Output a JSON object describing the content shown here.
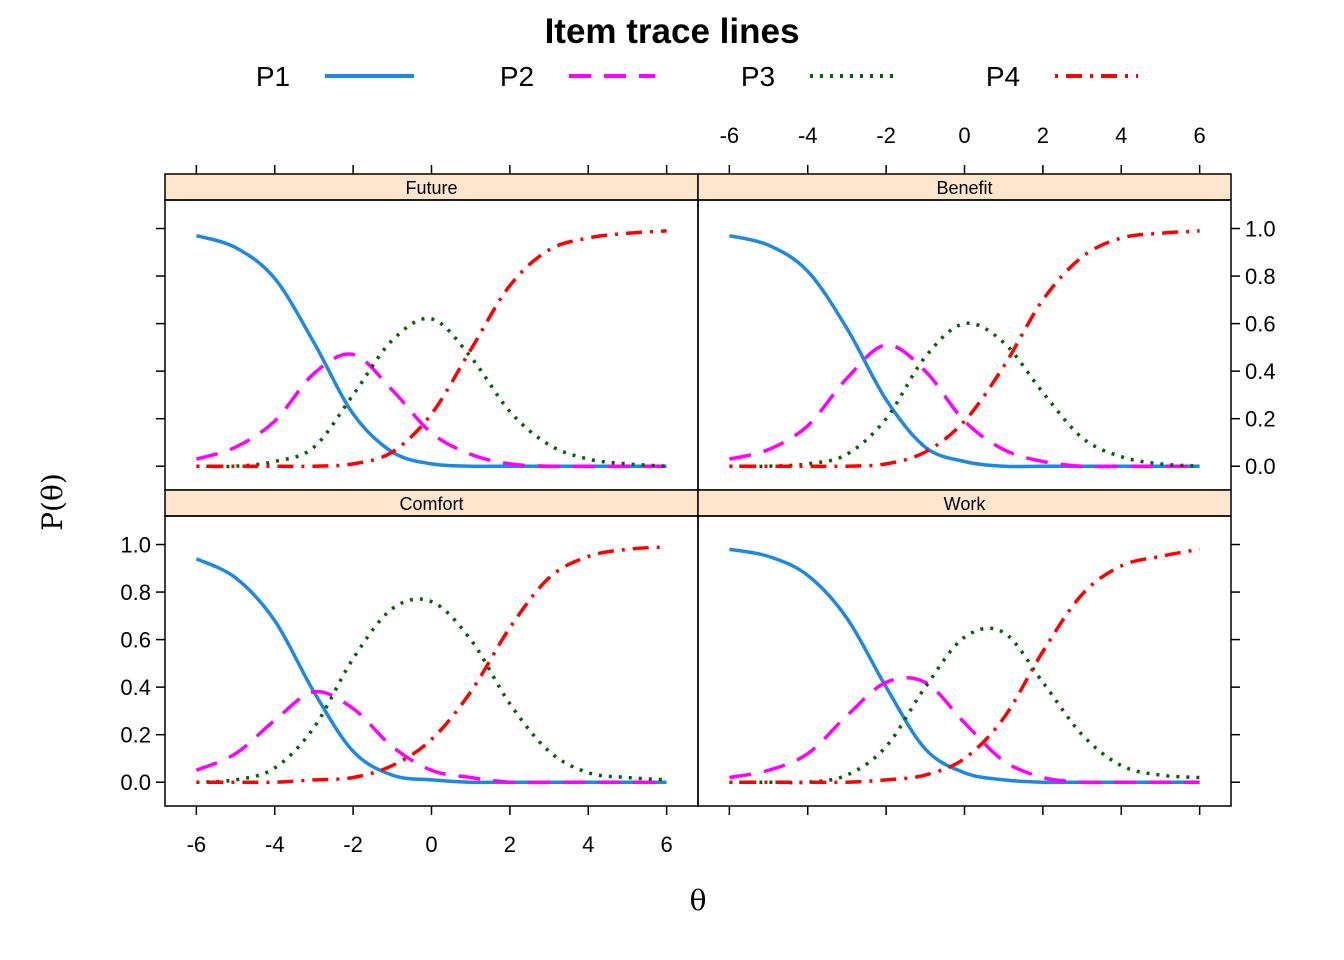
{
  "chart_data": {
    "type": "line",
    "title": "Item trace lines",
    "xlabel": "θ",
    "ylabel": "P(θ)",
    "xlim": [
      -6.8,
      6.8
    ],
    "ylim": [
      -0.1,
      1.12
    ],
    "x_ticks": [
      -6,
      -4,
      -2,
      0,
      2,
      4,
      6
    ],
    "y_ticks": [
      0.0,
      0.2,
      0.4,
      0.6,
      0.8,
      1.0
    ],
    "x_tick_labels": [
      "-6",
      "-4",
      "-2",
      "0",
      "2",
      "4",
      "6"
    ],
    "y_tick_labels": [
      "0.0",
      "0.2",
      "0.4",
      "0.6",
      "0.8",
      "1.0"
    ],
    "legend": {
      "placement": "top",
      "entries": [
        {
          "name": "P1",
          "color": "#1E88E5",
          "dash": "solid"
        },
        {
          "name": "P2",
          "color": "#FF00FF",
          "dash": "dashed"
        },
        {
          "name": "P3",
          "color": "#006400",
          "dash": "dotted"
        },
        {
          "name": "P4",
          "color": "#FF0000",
          "dash": "dotdash"
        }
      ]
    },
    "x": [
      -6,
      -5,
      -4,
      -3,
      -2,
      -1,
      0,
      1,
      2,
      3,
      4,
      5,
      6
    ],
    "panels": [
      {
        "name": "Future",
        "series": [
          {
            "name": "P1",
            "values": [
              0.97,
              0.92,
              0.79,
              0.52,
              0.22,
              0.06,
              0.01,
              0.0,
              0.0,
              0.0,
              0.0,
              0.0,
              0.0
            ]
          },
          {
            "name": "P2",
            "values": [
              0.03,
              0.08,
              0.19,
              0.39,
              0.47,
              0.32,
              0.14,
              0.05,
              0.01,
              0.0,
              0.0,
              0.0,
              0.0
            ]
          },
          {
            "name": "P3",
            "values": [
              0.0,
              0.0,
              0.02,
              0.08,
              0.3,
              0.53,
              0.62,
              0.46,
              0.23,
              0.09,
              0.03,
              0.01,
              0.0
            ]
          },
          {
            "name": "P4",
            "values": [
              0.0,
              0.0,
              0.0,
              0.0,
              0.01,
              0.06,
              0.22,
              0.49,
              0.76,
              0.91,
              0.96,
              0.98,
              0.99
            ]
          }
        ]
      },
      {
        "name": "Benefit",
        "series": [
          {
            "name": "P1",
            "values": [
              0.97,
              0.93,
              0.82,
              0.58,
              0.28,
              0.08,
              0.02,
              0.0,
              0.0,
              0.0,
              0.0,
              0.0,
              0.0
            ]
          },
          {
            "name": "P2",
            "values": [
              0.03,
              0.07,
              0.17,
              0.37,
              0.51,
              0.4,
              0.19,
              0.07,
              0.02,
              0.0,
              0.0,
              0.0,
              0.0
            ]
          },
          {
            "name": "P3",
            "values": [
              0.0,
              0.0,
              0.01,
              0.05,
              0.2,
              0.46,
              0.6,
              0.52,
              0.31,
              0.12,
              0.04,
              0.01,
              0.0
            ]
          },
          {
            "name": "P4",
            "values": [
              0.0,
              0.0,
              0.0,
              0.0,
              0.01,
              0.06,
              0.19,
              0.42,
              0.7,
              0.88,
              0.96,
              0.98,
              0.99
            ]
          }
        ]
      },
      {
        "name": "Comfort",
        "series": [
          {
            "name": "P1",
            "values": [
              0.94,
              0.86,
              0.68,
              0.38,
              0.13,
              0.03,
              0.01,
              0.0,
              0.0,
              0.0,
              0.0,
              0.0,
              0.0
            ]
          },
          {
            "name": "P2",
            "values": [
              0.05,
              0.12,
              0.26,
              0.38,
              0.31,
              0.15,
              0.05,
              0.02,
              0.0,
              0.0,
              0.0,
              0.0,
              0.0
            ]
          },
          {
            "name": "P3",
            "values": [
              0.0,
              0.01,
              0.06,
              0.23,
              0.52,
              0.73,
              0.76,
              0.6,
              0.33,
              0.13,
              0.04,
              0.02,
              0.01
            ]
          },
          {
            "name": "P4",
            "values": [
              0.0,
              0.0,
              0.0,
              0.01,
              0.02,
              0.07,
              0.18,
              0.38,
              0.65,
              0.86,
              0.95,
              0.98,
              0.99
            ]
          }
        ]
      },
      {
        "name": "Work",
        "series": [
          {
            "name": "P1",
            "values": [
              0.98,
              0.95,
              0.87,
              0.69,
              0.4,
              0.14,
              0.04,
              0.01,
              0.0,
              0.0,
              0.0,
              0.0,
              0.0
            ]
          },
          {
            "name": "P2",
            "values": [
              0.02,
              0.05,
              0.12,
              0.28,
              0.42,
              0.42,
              0.25,
              0.09,
              0.02,
              0.0,
              0.0,
              0.0,
              0.0
            ]
          },
          {
            "name": "P3",
            "values": [
              0.0,
              0.0,
              0.0,
              0.03,
              0.15,
              0.4,
              0.61,
              0.63,
              0.42,
              0.2,
              0.07,
              0.03,
              0.02
            ]
          },
          {
            "name": "P4",
            "values": [
              0.0,
              0.0,
              0.0,
              0.0,
              0.01,
              0.03,
              0.1,
              0.27,
              0.55,
              0.79,
              0.91,
              0.95,
              0.98
            ]
          }
        ]
      }
    ]
  }
}
